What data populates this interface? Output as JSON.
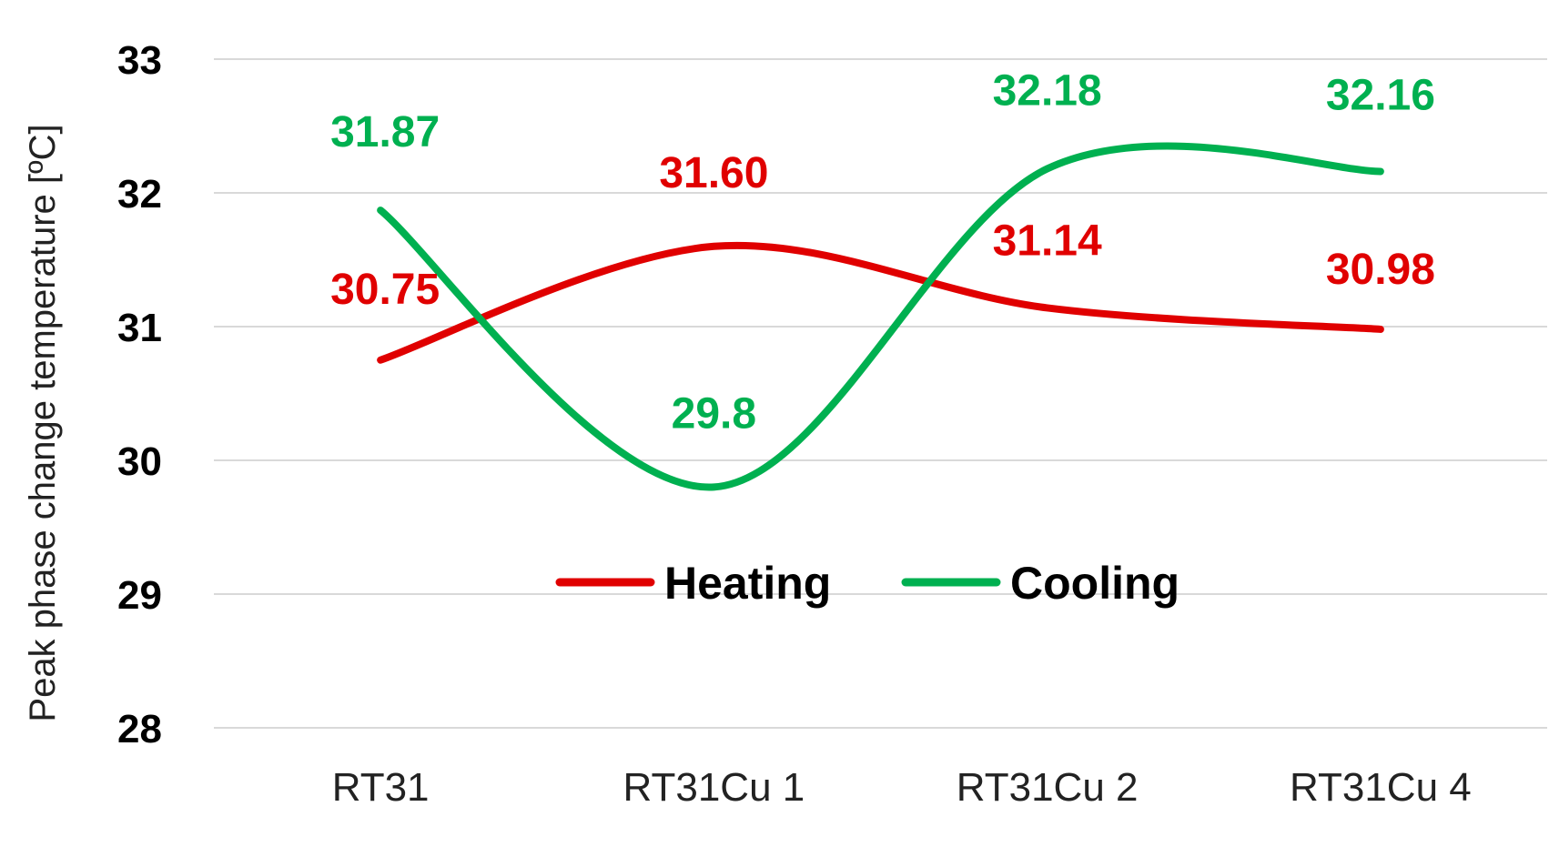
{
  "chart_data": {
    "type": "line",
    "categories": [
      "RT31",
      "RT31Cu 1",
      "RT31Cu 2",
      "RT31Cu 4"
    ],
    "series": [
      {
        "name": "Heating",
        "values": [
          30.75,
          31.6,
          31.14,
          30.98
        ],
        "labels": [
          "30.75",
          "31.60",
          "31.14",
          "30.98"
        ],
        "color": "#e00000"
      },
      {
        "name": "Cooling",
        "values": [
          31.87,
          29.8,
          32.18,
          32.16
        ],
        "labels": [
          "31.87",
          "29.8",
          "32.18",
          "32.16"
        ],
        "color": "#00b050"
      }
    ],
    "ylabel": "Peak phase change temperature [ºC]",
    "ylim": [
      28,
      33
    ],
    "yticks": [
      "28",
      "29",
      "30",
      "31",
      "32",
      "33"
    ],
    "grid": true,
    "smooth": true,
    "legend": "inside-center"
  }
}
